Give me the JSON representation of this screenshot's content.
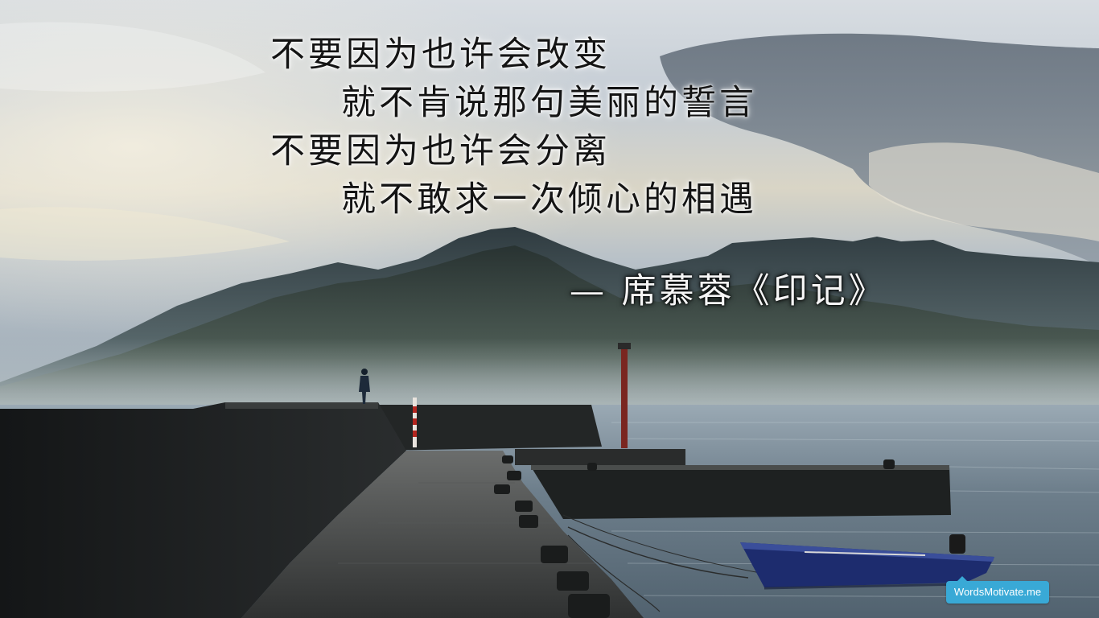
{
  "poem": {
    "line1": "不要因为也许会改变",
    "line2": "就不肯说那句美丽的誓言",
    "line3": "不要因为也许会分离",
    "line4": "就不敢求一次倾心的相遇"
  },
  "attribution": "— 席慕蓉《印记》",
  "watermark": "WordsMotivate.me",
  "colors": {
    "poem_text": "#141414",
    "attribution_text": "#f5f5f5",
    "watermark_bg": "#39a9d6",
    "boat_hull": "#1d2c6e"
  },
  "scene": {
    "description_icons": [
      "mountain-range",
      "pier",
      "lighthouse-pole",
      "boat",
      "person-silhouette",
      "sea"
    ]
  }
}
